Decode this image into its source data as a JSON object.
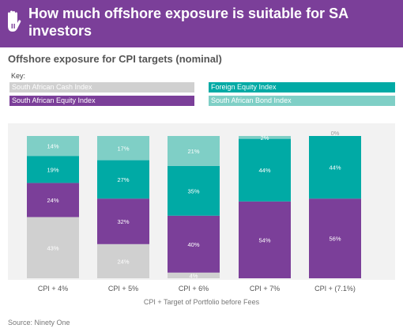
{
  "header": {
    "title": "How much offshore exposure is suitable for SA investors"
  },
  "legend_title": "Key:",
  "chart_data": {
    "type": "bar",
    "stacked": true,
    "title": "Offshore exposure for CPI targets (nominal)",
    "xlabel": "CPI + Target of Portfolio before Fees",
    "ylabel": "",
    "ylim": [
      0,
      100
    ],
    "categories": [
      "CPI + 4%",
      "CPI + 5%",
      "CPI + 6%",
      "CPI + 7%",
      "CPI + (7.1%)"
    ],
    "series": [
      {
        "name": "South African Cash Index",
        "color": "#d0d0d0",
        "values": [
          0,
          24,
          4,
          0,
          0
        ],
        "labels": [
          "0%",
          "24%",
          "4%",
          "0%",
          "0%"
        ]
      },
      {
        "name": "South African Bond Index",
        "color": "#d0d0d0",
        "values": [
          43,
          0,
          0,
          0,
          0
        ],
        "labels": [
          "43%",
          "0%",
          "0%",
          "0%",
          "0%"
        ]
      },
      {
        "name": "South African Equity Index",
        "color": "#7b3f99",
        "values": [
          24,
          32,
          40,
          54,
          56
        ],
        "labels": [
          "24%",
          "32%",
          "40%",
          "54%",
          "56%"
        ]
      },
      {
        "name": "Foreign Equity Index",
        "color": "#00aaa5",
        "values": [
          19,
          27,
          35,
          44,
          44
        ],
        "labels": [
          "19%",
          "27%",
          "35%",
          "44%",
          "44%"
        ]
      },
      {
        "name": "South African Bond Index",
        "color": "#7fcfc6",
        "values": [
          14,
          17,
          21,
          2,
          0
        ],
        "labels": [
          "14%",
          "17%",
          "21%",
          "2%",
          "0%"
        ]
      }
    ]
  },
  "legend": [
    {
      "label": "South African Cash Index",
      "color": "#d0d0d0"
    },
    {
      "label": "South African Equity Index",
      "color": "#7b3f99"
    },
    {
      "label": "Foreign Equity Index",
      "color": "#00aaa5"
    },
    {
      "label": "South African Bond Index",
      "color": "#7fcfc6"
    }
  ],
  "source": "Source:  Ninety One"
}
